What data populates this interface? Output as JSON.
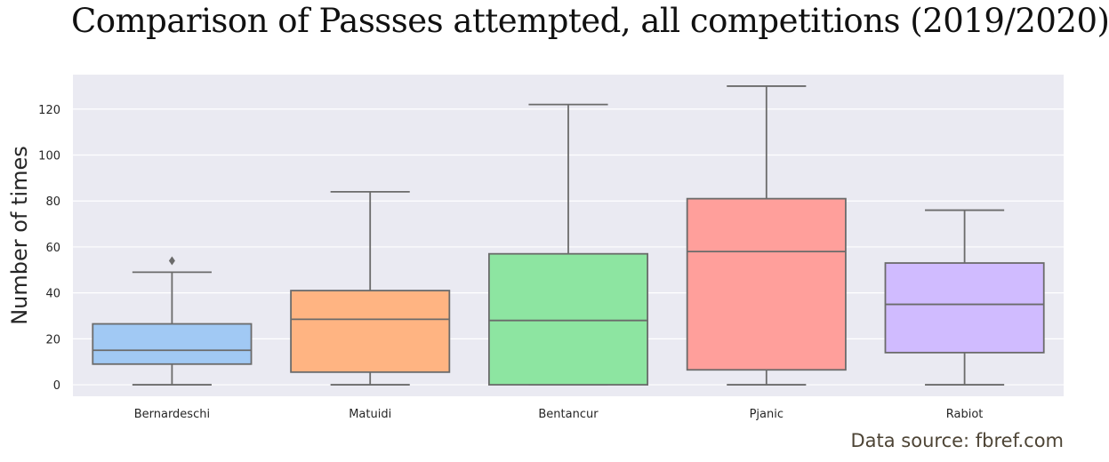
{
  "chart_data": {
    "type": "box",
    "title": "Comparison of Passses attempted, all competitions (2019/2020)",
    "xlabel": "",
    "ylabel": "Number of times",
    "ylim": [
      -5,
      135
    ],
    "yticks": [
      0,
      20,
      40,
      60,
      80,
      100,
      120
    ],
    "grid": true,
    "categories": [
      "Bernardeschi",
      "Matuidi",
      "Bentancur",
      "Pjanic",
      "Rabiot"
    ],
    "boxes": [
      {
        "category": "Bernardeschi",
        "whisker_low": 0,
        "q1": 9,
        "median": 15,
        "q3": 26.5,
        "whisker_high": 49,
        "outliers": [
          54
        ],
        "color": "#a1c9f4"
      },
      {
        "category": "Matuidi",
        "whisker_low": 0,
        "q1": 5.5,
        "median": 28.5,
        "q3": 41,
        "whisker_high": 84,
        "outliers": [],
        "color": "#ffb482"
      },
      {
        "category": "Bentancur",
        "whisker_low": 0,
        "q1": 0,
        "median": 28,
        "q3": 57,
        "whisker_high": 122,
        "outliers": [],
        "color": "#8de5a1"
      },
      {
        "category": "Pjanic",
        "whisker_low": 0,
        "q1": 6.5,
        "median": 58,
        "q3": 81,
        "whisker_high": 130,
        "outliers": [],
        "color": "#ff9f9b"
      },
      {
        "category": "Rabiot",
        "whisker_low": 0,
        "q1": 14,
        "median": 35,
        "q3": 53,
        "whisker_high": 76,
        "outliers": [],
        "color": "#d0bbff"
      }
    ],
    "colors": {
      "background": "#eaeaf2",
      "grid": "#ffffff",
      "line": "#6b6b6b"
    }
  },
  "source_note": "Data source: fbref.com"
}
